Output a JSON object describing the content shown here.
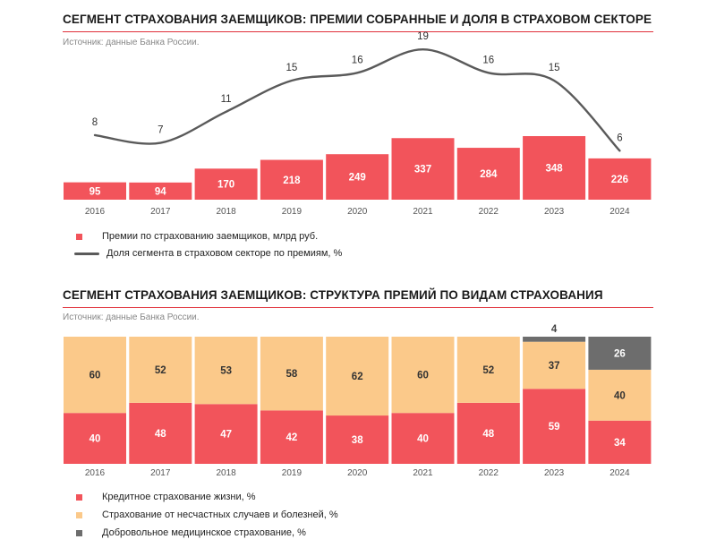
{
  "charts": [
    {
      "title": "СЕГМЕНТ СТРАХОВАНИЯ ЗАЕМЩИКОВ: ПРЕМИИ СОБРАННЫЕ И ДОЛЯ В СТРАХОВОМ СЕКТОРЕ",
      "source": "Источник: данные Банка России.",
      "legend": [
        {
          "label": "Премии по страхованию заемщиков, млрд руб.",
          "color": "#f2545b",
          "kind": "square"
        },
        {
          "label": "Доля сегмента в страховом секторе по премиям, %",
          "color": "#5a5a5a",
          "kind": "line"
        }
      ]
    },
    {
      "title": "СЕГМЕНТ СТРАХОВАНИЯ ЗАЕМЩИКОВ: СТРУКТУРА ПРЕМИЙ ПО ВИДАМ СТРАХОВАНИЯ",
      "source": "Источник: данные Банка России.",
      "legend": [
        {
          "label": "Кредитное страхование жизни, %",
          "color": "#f2545b",
          "kind": "square"
        },
        {
          "label": "Страхование от несчастных случаев и болезней, %",
          "color": "#fbc98a",
          "kind": "square"
        },
        {
          "label": "Добровольное медицинское страхование, %",
          "color": "#6d6d6d",
          "kind": "square"
        }
      ]
    }
  ],
  "chart_data": [
    {
      "type": "bar",
      "categories": [
        "2016",
        "2017",
        "2018",
        "2019",
        "2020",
        "2021",
        "2022",
        "2023",
        "2024"
      ],
      "series": [
        {
          "name": "Премии по страхованию заемщиков, млрд руб.",
          "values": [
            95,
            94,
            170,
            218,
            249,
            337,
            284,
            348,
            226
          ],
          "color": "#f2545b",
          "kind": "bar"
        },
        {
          "name": "Доля сегмента в страховом секторе по премиям, %",
          "values": [
            8,
            7,
            11,
            15,
            16,
            19,
            16,
            15,
            6
          ],
          "color": "#5a5a5a",
          "kind": "line"
        }
      ],
      "title": "СЕГМЕНТ СТРАХОВАНИЯ ЗАЕМЩИКОВ: ПРЕМИИ СОБРАННЫЕ И ДОЛЯ В СТРАХОВОМ СЕКТОРЕ"
    },
    {
      "type": "bar",
      "stacked": true,
      "categories": [
        "2016",
        "2017",
        "2018",
        "2019",
        "2020",
        "2021",
        "2022",
        "2023",
        "2024"
      ],
      "series": [
        {
          "name": "Кредитное страхование жизни, %",
          "values": [
            40,
            48,
            47,
            42,
            38,
            40,
            48,
            59,
            34
          ],
          "color": "#f2545b"
        },
        {
          "name": "Страхование от несчастных случаев и болезней, %",
          "values": [
            60,
            52,
            53,
            58,
            62,
            60,
            52,
            37,
            40
          ],
          "color": "#fbc98a"
        },
        {
          "name": "Добровольное медицинское страхование, %",
          "values": [
            0,
            0,
            0,
            0,
            0,
            0,
            0,
            4,
            26
          ],
          "color": "#6d6d6d"
        }
      ],
      "title": "СЕГМЕНТ СТРАХОВАНИЯ ЗАЕМЩИКОВ: СТРУКТУРА ПРЕМИЙ ПО ВИДАМ СТРАХОВАНИЯ"
    }
  ]
}
